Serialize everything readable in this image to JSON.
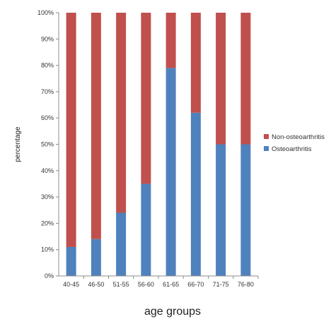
{
  "chart_data": {
    "type": "bar",
    "stacked": true,
    "categories": [
      "40-45",
      "46-50",
      "51-55",
      "56-60",
      "61-65",
      "66-70",
      "71-75",
      "76-80"
    ],
    "series": [
      {
        "name": "Osteoarthritis",
        "color": "#4f81bd",
        "values": [
          11,
          14,
          24,
          35,
          79,
          62,
          50,
          50
        ]
      },
      {
        "name": "Non-osteoarthritis",
        "color": "#c0504d",
        "values": [
          89,
          86,
          76,
          65,
          21,
          38,
          50,
          50
        ]
      }
    ],
    "xlabel": "age groups",
    "ylabel": "percentage",
    "ylim": [
      0,
      100
    ],
    "yticks": [
      "0%",
      "10%",
      "20%",
      "30%",
      "40%",
      "50%",
      "60%",
      "70%",
      "80%",
      "90%",
      "100%"
    ],
    "legend_position": "right",
    "legend_order": [
      "Non-osteoarthritis",
      "Osteoarthritis"
    ],
    "grid": false
  }
}
